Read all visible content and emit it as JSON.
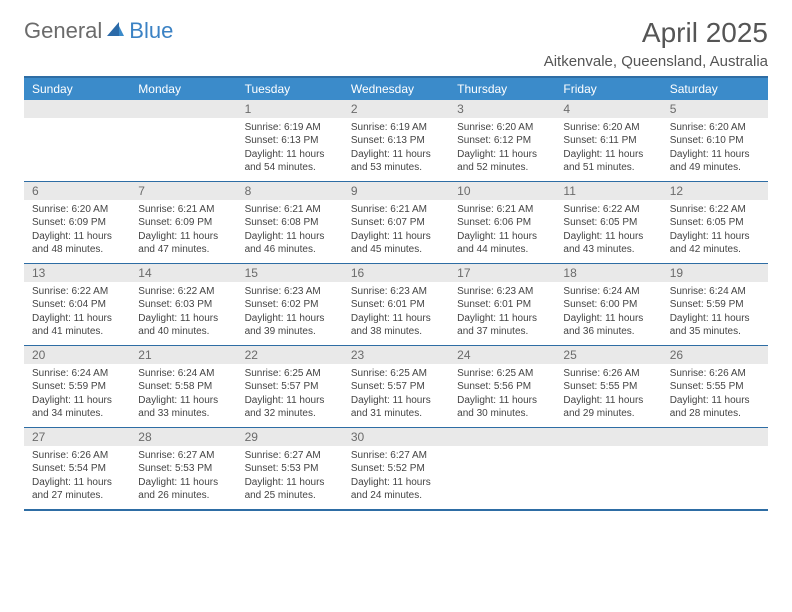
{
  "brand": {
    "general": "General",
    "blue": "Blue"
  },
  "title": "April 2025",
  "location": "Aitkenvale, Queensland, Australia",
  "colors": {
    "header_bg": "#3b8bca",
    "border": "#2e6da4",
    "daynum_bg": "#e9e9e9",
    "text_muted": "#6b6b6b",
    "brand_blue": "#3b82c4"
  },
  "day_names": [
    "Sunday",
    "Monday",
    "Tuesday",
    "Wednesday",
    "Thursday",
    "Friday",
    "Saturday"
  ],
  "weeks": [
    [
      null,
      null,
      {
        "n": "1",
        "sr": "6:19 AM",
        "ss": "6:13 PM",
        "dl": "11 hours and 54 minutes."
      },
      {
        "n": "2",
        "sr": "6:19 AM",
        "ss": "6:13 PM",
        "dl": "11 hours and 53 minutes."
      },
      {
        "n": "3",
        "sr": "6:20 AM",
        "ss": "6:12 PM",
        "dl": "11 hours and 52 minutes."
      },
      {
        "n": "4",
        "sr": "6:20 AM",
        "ss": "6:11 PM",
        "dl": "11 hours and 51 minutes."
      },
      {
        "n": "5",
        "sr": "6:20 AM",
        "ss": "6:10 PM",
        "dl": "11 hours and 49 minutes."
      }
    ],
    [
      {
        "n": "6",
        "sr": "6:20 AM",
        "ss": "6:09 PM",
        "dl": "11 hours and 48 minutes."
      },
      {
        "n": "7",
        "sr": "6:21 AM",
        "ss": "6:09 PM",
        "dl": "11 hours and 47 minutes."
      },
      {
        "n": "8",
        "sr": "6:21 AM",
        "ss": "6:08 PM",
        "dl": "11 hours and 46 minutes."
      },
      {
        "n": "9",
        "sr": "6:21 AM",
        "ss": "6:07 PM",
        "dl": "11 hours and 45 minutes."
      },
      {
        "n": "10",
        "sr": "6:21 AM",
        "ss": "6:06 PM",
        "dl": "11 hours and 44 minutes."
      },
      {
        "n": "11",
        "sr": "6:22 AM",
        "ss": "6:05 PM",
        "dl": "11 hours and 43 minutes."
      },
      {
        "n": "12",
        "sr": "6:22 AM",
        "ss": "6:05 PM",
        "dl": "11 hours and 42 minutes."
      }
    ],
    [
      {
        "n": "13",
        "sr": "6:22 AM",
        "ss": "6:04 PM",
        "dl": "11 hours and 41 minutes."
      },
      {
        "n": "14",
        "sr": "6:22 AM",
        "ss": "6:03 PM",
        "dl": "11 hours and 40 minutes."
      },
      {
        "n": "15",
        "sr": "6:23 AM",
        "ss": "6:02 PM",
        "dl": "11 hours and 39 minutes."
      },
      {
        "n": "16",
        "sr": "6:23 AM",
        "ss": "6:01 PM",
        "dl": "11 hours and 38 minutes."
      },
      {
        "n": "17",
        "sr": "6:23 AM",
        "ss": "6:01 PM",
        "dl": "11 hours and 37 minutes."
      },
      {
        "n": "18",
        "sr": "6:24 AM",
        "ss": "6:00 PM",
        "dl": "11 hours and 36 minutes."
      },
      {
        "n": "19",
        "sr": "6:24 AM",
        "ss": "5:59 PM",
        "dl": "11 hours and 35 minutes."
      }
    ],
    [
      {
        "n": "20",
        "sr": "6:24 AM",
        "ss": "5:59 PM",
        "dl": "11 hours and 34 minutes."
      },
      {
        "n": "21",
        "sr": "6:24 AM",
        "ss": "5:58 PM",
        "dl": "11 hours and 33 minutes."
      },
      {
        "n": "22",
        "sr": "6:25 AM",
        "ss": "5:57 PM",
        "dl": "11 hours and 32 minutes."
      },
      {
        "n": "23",
        "sr": "6:25 AM",
        "ss": "5:57 PM",
        "dl": "11 hours and 31 minutes."
      },
      {
        "n": "24",
        "sr": "6:25 AM",
        "ss": "5:56 PM",
        "dl": "11 hours and 30 minutes."
      },
      {
        "n": "25",
        "sr": "6:26 AM",
        "ss": "5:55 PM",
        "dl": "11 hours and 29 minutes."
      },
      {
        "n": "26",
        "sr": "6:26 AM",
        "ss": "5:55 PM",
        "dl": "11 hours and 28 minutes."
      }
    ],
    [
      {
        "n": "27",
        "sr": "6:26 AM",
        "ss": "5:54 PM",
        "dl": "11 hours and 27 minutes."
      },
      {
        "n": "28",
        "sr": "6:27 AM",
        "ss": "5:53 PM",
        "dl": "11 hours and 26 minutes."
      },
      {
        "n": "29",
        "sr": "6:27 AM",
        "ss": "5:53 PM",
        "dl": "11 hours and 25 minutes."
      },
      {
        "n": "30",
        "sr": "6:27 AM",
        "ss": "5:52 PM",
        "dl": "11 hours and 24 minutes."
      },
      null,
      null,
      null
    ]
  ],
  "labels": {
    "sunrise": "Sunrise:",
    "sunset": "Sunset:",
    "daylight": "Daylight:"
  }
}
